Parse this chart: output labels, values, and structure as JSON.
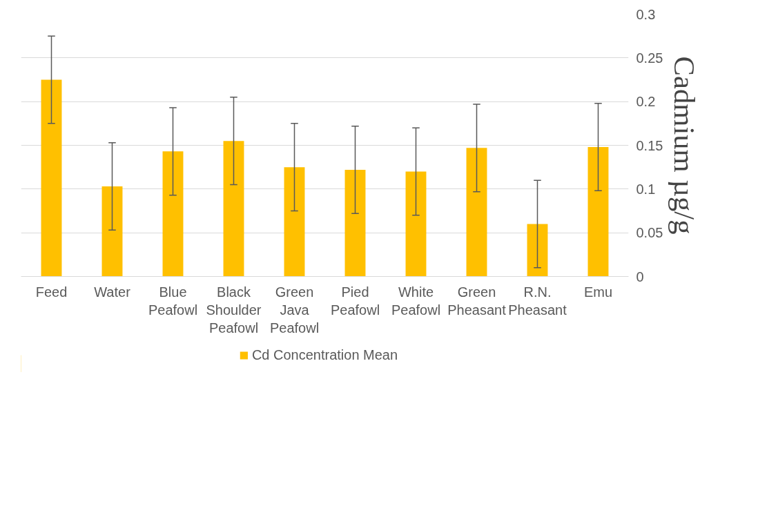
{
  "chart_data": {
    "type": "bar",
    "ylabel": "Cadmium µg/g",
    "categories": [
      "Feed",
      "Water",
      "Blue Peafowl",
      "Black Shoulder Peafowl",
      "Green Java Peafowl",
      "Pied Peafowl",
      "White Peafowl",
      "Green Pheasant",
      "R.N. Pheasant",
      "Emu"
    ],
    "series": [
      {
        "name": "Cd Concentration Mean",
        "color": "#ffc000",
        "values": [
          0.225,
          0.103,
          0.143,
          0.155,
          0.125,
          0.122,
          0.12,
          0.147,
          0.06,
          0.148
        ],
        "errors": [
          0.05,
          0.05,
          0.05,
          0.05,
          0.05,
          0.05,
          0.05,
          0.05,
          0.05,
          0.05
        ]
      }
    ],
    "ylim": [
      0,
      0.3
    ],
    "yticks": [
      0,
      0.05,
      0.1,
      0.15,
      0.2,
      0.25,
      0.3
    ],
    "grid": "y",
    "legend": "bottom"
  }
}
